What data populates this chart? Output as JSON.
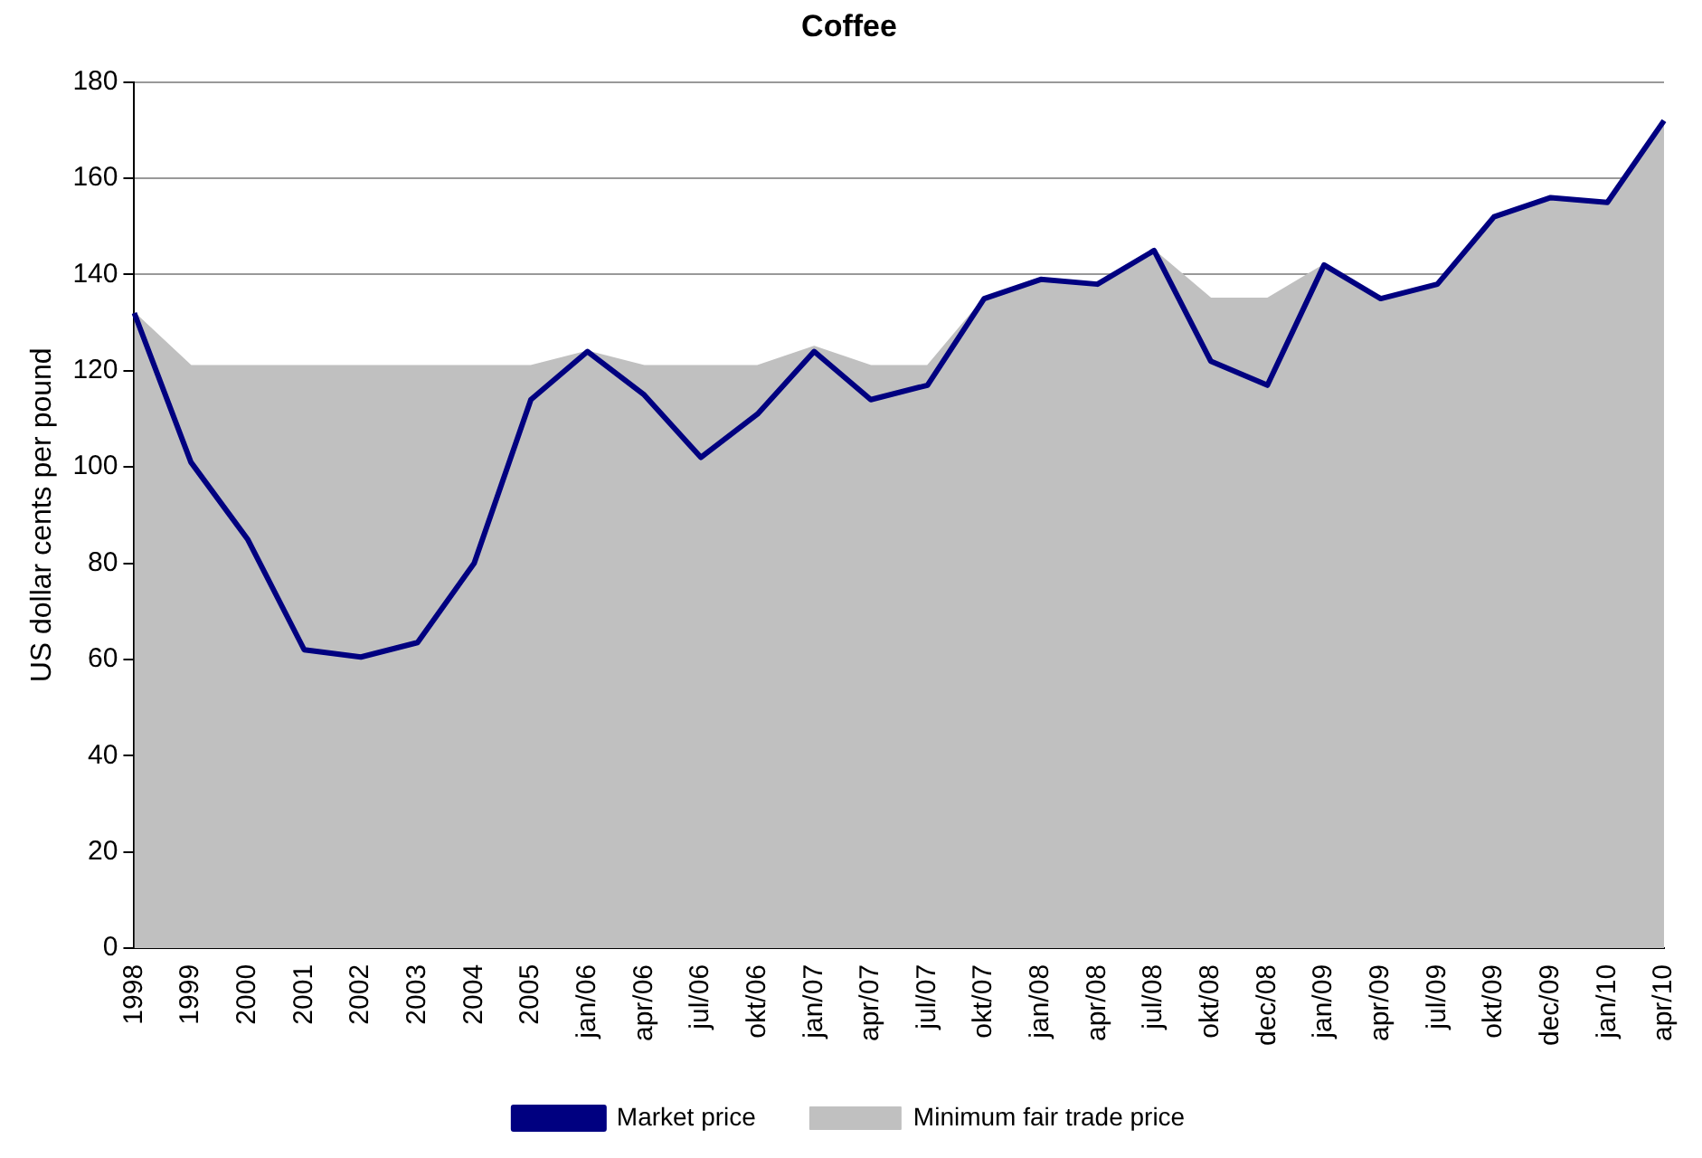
{
  "chart_data": {
    "type": "area",
    "title": "Coffee",
    "ylabel": "US dollar cents per pound",
    "categories": [
      "1998",
      "1999",
      "2000",
      "2001",
      "2002",
      "2003",
      "2004",
      "2005",
      "jan/06",
      "apr/06",
      "jul/06",
      "okt/06",
      "jan/07",
      "apr/07",
      "jul/07",
      "okt/07",
      "jan/08",
      "apr/08",
      "jul/08",
      "okt/08",
      "dec/08",
      "jan/09",
      "apr/09",
      "jul/09",
      "okt/09",
      "dec/09",
      "jan/10",
      "apr/10"
    ],
    "series": [
      {
        "name": "Minimum fair trade price",
        "type": "area",
        "color": "#c0c0c0",
        "values": [
          132,
          121,
          121,
          121,
          121,
          121,
          121,
          121,
          124,
          121,
          121,
          121,
          125,
          121,
          121,
          135,
          139,
          138,
          145,
          135,
          135,
          142,
          135,
          138,
          152,
          156,
          155,
          172
        ]
      },
      {
        "name": "Market price",
        "type": "line",
        "color": "#000080",
        "values": [
          132,
          101,
          85,
          62,
          60.5,
          63.5,
          80,
          114,
          124,
          115,
          102,
          111,
          124,
          114,
          117,
          135,
          139,
          138,
          145,
          122,
          117,
          142,
          135,
          138,
          152,
          156,
          155,
          172
        ]
      }
    ],
    "ylim": [
      0,
      180
    ],
    "yticks": [
      0,
      20,
      40,
      60,
      80,
      100,
      120,
      140,
      160,
      180
    ],
    "grid": "y",
    "legend": "bottom",
    "marker": "none"
  }
}
